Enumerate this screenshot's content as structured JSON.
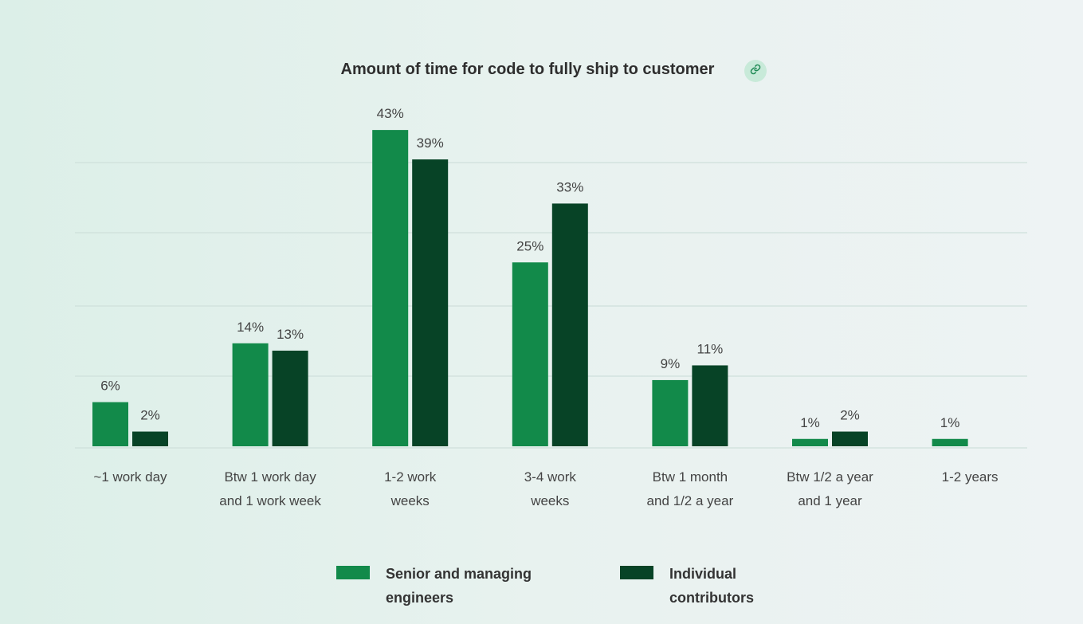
{
  "chart_data": {
    "type": "bar",
    "title": "Amount of time for code to fully ship to customer",
    "categories": [
      [
        "~1 work day"
      ],
      [
        "Btw 1 work day",
        "and 1 work week"
      ],
      [
        "1-2 work",
        "weeks"
      ],
      [
        "3-4 work",
        "weeks"
      ],
      [
        "Btw 1 month",
        "and 1/2 a year"
      ],
      [
        "Btw 1/2 a year",
        "and 1 year"
      ],
      [
        "1-2 years"
      ]
    ],
    "series": [
      {
        "name": "Senior and managing engineers",
        "color": "#128a4a",
        "values": [
          6,
          14,
          43,
          25,
          9,
          1,
          1
        ],
        "labels": [
          "6%",
          "14%",
          "43%",
          "25%",
          "9%",
          "1%",
          "1%"
        ]
      },
      {
        "name": "Individual contributors",
        "color": "#074326",
        "values": [
          2,
          13,
          39,
          33,
          11,
          2,
          null
        ],
        "labels": [
          "2%",
          "13%",
          "39%",
          "33%",
          "11%",
          "2%",
          ""
        ]
      }
    ],
    "unit": "%",
    "grid": true,
    "legend_position": "bottom"
  },
  "legend": {
    "senior_line1": "Senior and managing",
    "senior_line2": "engineers",
    "ic_line1": "Individual",
    "ic_line2": "contributors"
  },
  "icons": {
    "link": "link-icon"
  }
}
